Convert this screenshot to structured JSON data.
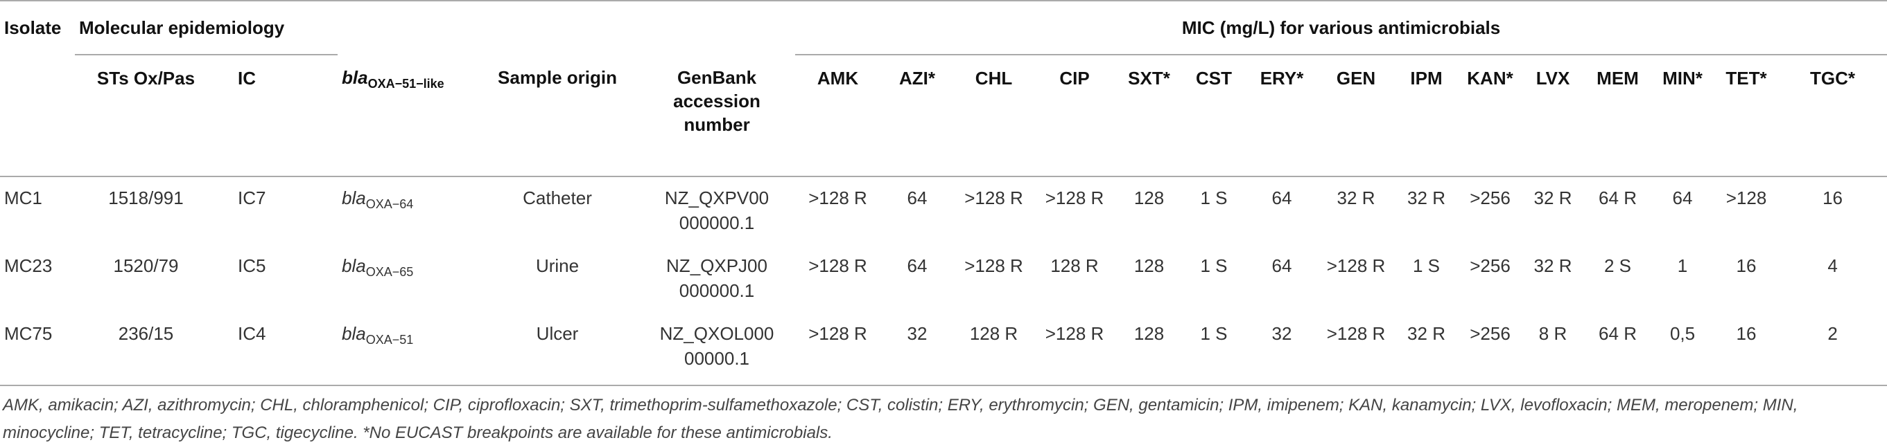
{
  "table": {
    "header_top": {
      "isolate": "Isolate",
      "molecular": "Molecular epidemiology",
      "mic": "MIC (mg/L) for various antimicrobials"
    },
    "columns": [
      "STs Ox/Pas",
      "IC",
      {
        "italic": "bla",
        "sub": "OXA−51−like"
      },
      "Sample origin",
      "GenBank accession number",
      "AMK",
      "AZI*",
      "CHL",
      "CIP",
      "SXT*",
      "CST",
      "ERY*",
      "GEN",
      "IPM",
      "KAN*",
      "LVX",
      "MEM",
      "MIN*",
      "TET*",
      "TGC*"
    ],
    "rows": [
      [
        "MC1",
        "1518/991",
        "IC7",
        {
          "italic": "bla",
          "sub": "OXA−64"
        },
        "Catheter",
        [
          "NZ_QXPV00",
          "000000.1"
        ],
        ">128 R",
        "64",
        ">128 R",
        ">128 R",
        "128",
        "1 S",
        "64",
        "32 R",
        "32 R",
        ">256",
        "32 R",
        "64 R",
        "64",
        ">128",
        "16"
      ],
      [
        "MC23",
        "1520/79",
        "IC5",
        {
          "italic": "bla",
          "sub": "OXA−65"
        },
        "Urine",
        [
          "NZ_QXPJ00",
          "000000.1"
        ],
        ">128 R",
        "64",
        ">128 R",
        "128 R",
        "128",
        "1 S",
        "64",
        ">128 R",
        "1 S",
        ">256",
        "32 R",
        "2 S",
        "1",
        "16",
        "4"
      ],
      [
        "MC75",
        "236/15",
        "IC4",
        {
          "italic": "bla",
          "sub": "OXA−51"
        },
        "Ulcer",
        [
          "NZ_QXOL000",
          "00000.1"
        ],
        ">128 R",
        "32",
        "128 R",
        ">128 R",
        "128",
        "1 S",
        "32",
        ">128 R",
        "32 R",
        ">256",
        "8 R",
        "64 R",
        "0,5",
        "16",
        "2"
      ]
    ]
  },
  "footnote": "AMK, amikacin; AZI, azithromycin; CHL, chloramphenicol; CIP, ciprofloxacin; SXT, trimethoprim-sulfamethoxazole; CST, colistin; ERY, erythromycin; GEN, gentamicin; IPM, imipenem; KAN, kanamycin; LVX, levofloxacin; MEM, meropenem; MIN, minocycline; TET, tetracycline; TGC, tigecycline. *No EUCAST breakpoints are available for these antimicrobials."
}
